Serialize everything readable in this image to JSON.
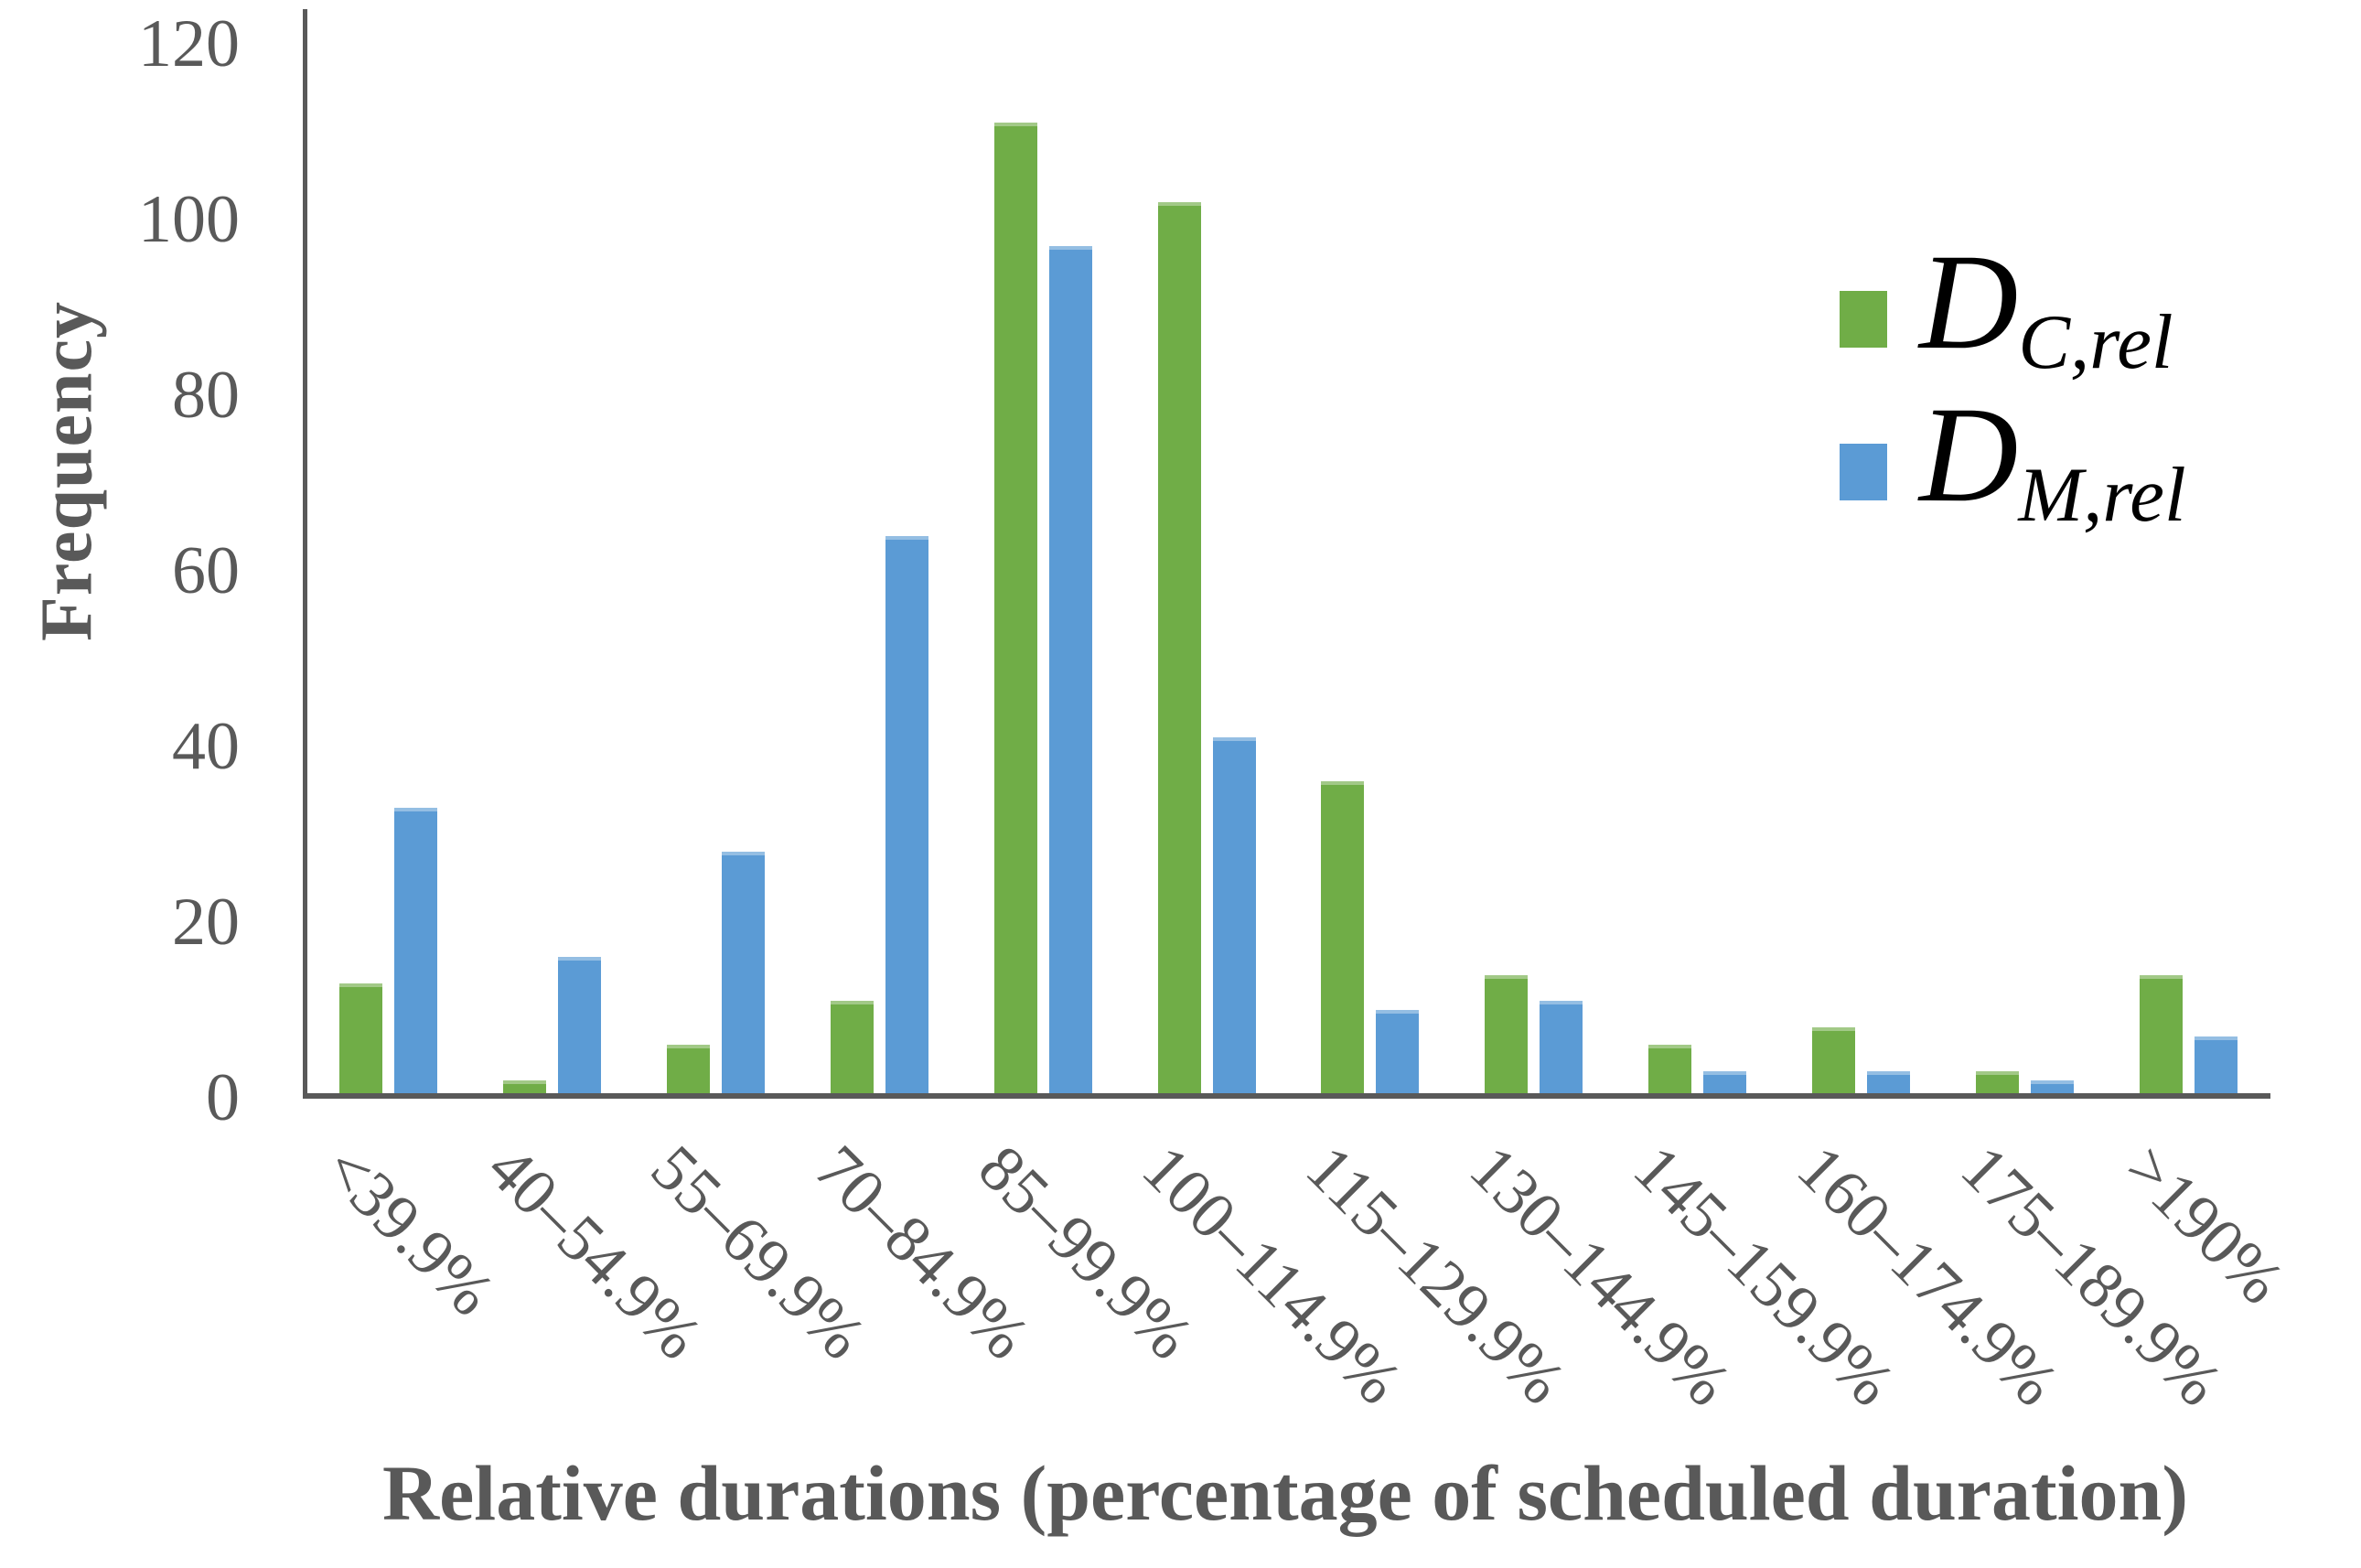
{
  "chart_data": {
    "type": "bar",
    "title": "",
    "xlabel": "Relative durations (percentage of scheduled duration)",
    "ylabel": "Frequency",
    "ylim": [
      0,
      120
    ],
    "yticks": [
      0,
      20,
      40,
      60,
      80,
      100,
      120
    ],
    "grid": false,
    "legend_position": "top-right",
    "categories": [
      "<39.9%",
      "40–54.9%",
      "55–69.9%",
      "70–84.9%",
      "85–99.9%",
      "100–114.9%",
      "115–129.9%",
      "130–144.9%",
      "145–159.9%",
      "160–174.9%",
      "175–189.9%",
      ">190%"
    ],
    "series": [
      {
        "name": "D_C,rel",
        "label_main": "D",
        "label_sub": "C,rel",
        "color": "#70AD47",
        "values": [
          13,
          2,
          6,
          11,
          111,
          102,
          36,
          14,
          6,
          8,
          3,
          14
        ]
      },
      {
        "name": "D_M,rel",
        "label_main": "D",
        "label_sub": "M,rel",
        "color": "#5B9BD5",
        "values": [
          33,
          16,
          28,
          64,
          97,
          41,
          10,
          11,
          3,
          3,
          2,
          7
        ]
      }
    ]
  },
  "colors": {
    "axis": "#595959",
    "text": "#595959",
    "series_green": "#70AD47",
    "series_blue": "#5B9BD5",
    "background": "#ffffff"
  }
}
